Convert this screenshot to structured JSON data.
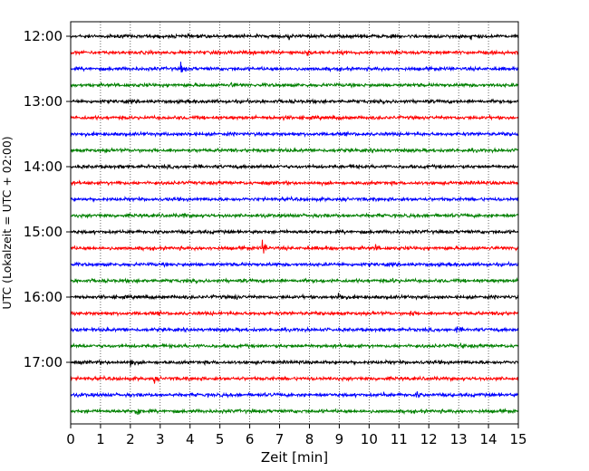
{
  "chart_data": {
    "type": "line",
    "title": "",
    "xlabel": "Zeit  [min]",
    "ylabel": "UTC (Lokalzeit = UTC + 02:00)",
    "xlim": [
      0,
      15
    ],
    "xticks": [
      "0",
      "1",
      "2",
      "3",
      "4",
      "5",
      "6",
      "7",
      "8",
      "9",
      "10",
      "11",
      "12",
      "13",
      "14",
      "15"
    ],
    "grid": "vertical dotted at each minute",
    "hour_tick_labels": [
      "12:00",
      "13:00",
      "14:00",
      "15:00",
      "16:00",
      "17:00"
    ],
    "line_colors": [
      "#000000",
      "#ff0000",
      "#0000ff",
      "#008000"
    ],
    "traces": [
      {
        "start": "12:00",
        "color": "#000000",
        "events": [
          {
            "x": 7.3,
            "amp": 0.25
          },
          {
            "x": 13.4,
            "amp": 0.35
          }
        ]
      },
      {
        "start": "12:15",
        "color": "#ff0000",
        "events": [
          {
            "x": 7.95,
            "amp": 0.45
          }
        ]
      },
      {
        "start": "12:30",
        "color": "#0000ff",
        "events": [
          {
            "x": 3.7,
            "amp": 0.75
          }
        ]
      },
      {
        "start": "12:45",
        "color": "#008000",
        "events": [
          {
            "x": 5.4,
            "amp": 0.25
          }
        ]
      },
      {
        "start": "13:00",
        "color": "#000000",
        "events": []
      },
      {
        "start": "13:15",
        "color": "#ff0000",
        "events": [
          {
            "x": 7.1,
            "amp": 0.2
          }
        ]
      },
      {
        "start": "13:30",
        "color": "#0000ff",
        "events": [
          {
            "x": 4.0,
            "amp": 0.25
          }
        ]
      },
      {
        "start": "13:45",
        "color": "#008000",
        "events": [
          {
            "x": 1.2,
            "amp": 0.2
          }
        ]
      },
      {
        "start": "14:00",
        "color": "#000000",
        "events": [
          {
            "x": 9.5,
            "amp": 0.15
          }
        ]
      },
      {
        "start": "14:15",
        "color": "#ff0000",
        "events": [
          {
            "x": 1.6,
            "amp": 0.2
          }
        ]
      },
      {
        "start": "14:30",
        "color": "#0000ff",
        "events": []
      },
      {
        "start": "14:45",
        "color": "#008000",
        "events": [
          {
            "x": 3.8,
            "amp": 0.2
          }
        ]
      },
      {
        "start": "15:00",
        "color": "#000000",
        "events": []
      },
      {
        "start": "15:15",
        "color": "#ff0000",
        "events": [
          {
            "x": 6.45,
            "amp": 0.9
          },
          {
            "x": 10.2,
            "amp": 0.35
          },
          {
            "x": 14.9,
            "amp": 0.2
          }
        ]
      },
      {
        "start": "15:30",
        "color": "#0000ff",
        "events": []
      },
      {
        "start": "15:45",
        "color": "#008000",
        "events": [
          {
            "x": 10.8,
            "amp": 0.2
          }
        ]
      },
      {
        "start": "16:00",
        "color": "#000000",
        "events": [
          {
            "x": 9.0,
            "amp": 1.0
          },
          {
            "x": 5.5,
            "amp": 0.3
          }
        ]
      },
      {
        "start": "16:15",
        "color": "#ff0000",
        "events": [
          {
            "x": 11.4,
            "amp": 0.35
          },
          {
            "x": 14.35,
            "amp": 0.5
          }
        ]
      },
      {
        "start": "16:30",
        "color": "#0000ff",
        "events": [
          {
            "x": 12.95,
            "amp": 0.35
          }
        ]
      },
      {
        "start": "16:45",
        "color": "#008000",
        "events": [
          {
            "x": 13.1,
            "amp": 0.35
          }
        ]
      },
      {
        "start": "17:00",
        "color": "#000000",
        "events": [
          {
            "x": 2.0,
            "amp": 0.55
          }
        ]
      },
      {
        "start": "17:15",
        "color": "#ff0000",
        "events": [
          {
            "x": 2.8,
            "amp": 0.4
          }
        ]
      },
      {
        "start": "17:30",
        "color": "#0000ff",
        "events": [
          {
            "x": 11.6,
            "amp": 0.45
          },
          {
            "x": 10.5,
            "amp": 0.2
          }
        ]
      },
      {
        "start": "17:45",
        "color": "#008000",
        "events": [
          {
            "x": 2.2,
            "amp": 1.0
          }
        ]
      }
    ]
  }
}
